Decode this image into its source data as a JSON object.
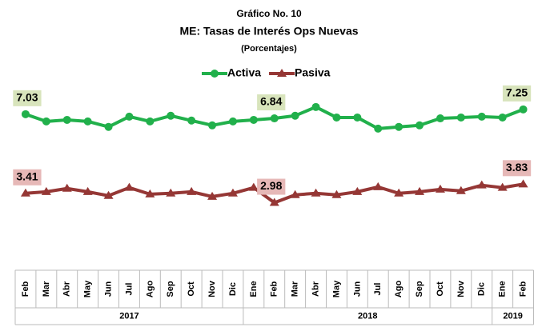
{
  "chart_data": {
    "type": "line",
    "title": "Gráfico No. 10",
    "subtitle": "ME: Tasas de Interés Ops Nuevas",
    "unit_label": "(Porcentajes)",
    "category_groups": [
      {
        "label": "2017",
        "categories": [
          "Feb",
          "Mar",
          "Abr",
          "May",
          "Jun",
          "Jul",
          "Ago",
          "Sep",
          "Oct",
          "Nov",
          "Dic"
        ]
      },
      {
        "label": "2018",
        "categories": [
          "Ene",
          "Feb",
          "Mar",
          "Abr",
          "May",
          "Jun",
          "Jul",
          "Ago",
          "Sep",
          "Oct",
          "Nov",
          "Dic"
        ]
      },
      {
        "label": "2019",
        "categories": [
          "Ene",
          "Feb"
        ]
      }
    ],
    "ylim": [
      0,
      9
    ],
    "series": [
      {
        "name": "Activa",
        "color": "#21b04b",
        "marker": "circle",
        "values": [
          7.03,
          6.7,
          6.77,
          6.7,
          6.45,
          6.92,
          6.7,
          6.96,
          6.74,
          6.52,
          6.7,
          6.77,
          6.84,
          6.96,
          7.36,
          6.88,
          6.88,
          6.37,
          6.45,
          6.52,
          6.84,
          6.88,
          6.92,
          6.88,
          7.25
        ],
        "value_labels": [
          "7.03",
          null,
          null,
          null,
          null,
          null,
          null,
          null,
          null,
          null,
          null,
          null,
          "6.84",
          null,
          null,
          null,
          null,
          null,
          null,
          null,
          null,
          null,
          null,
          null,
          "7.25"
        ]
      },
      {
        "name": "Pasiva",
        "color": "#953735",
        "marker": "triangle",
        "values": [
          3.41,
          3.48,
          3.63,
          3.48,
          3.3,
          3.67,
          3.37,
          3.41,
          3.48,
          3.26,
          3.41,
          3.67,
          2.98,
          3.34,
          3.41,
          3.34,
          3.48,
          3.7,
          3.41,
          3.48,
          3.59,
          3.52,
          3.78,
          3.67,
          3.83
        ],
        "value_labels": [
          "3.41",
          null,
          null,
          null,
          null,
          null,
          null,
          null,
          null,
          null,
          null,
          null,
          "2.98",
          null,
          null,
          null,
          null,
          null,
          null,
          null,
          null,
          null,
          null,
          null,
          "3.83"
        ]
      }
    ],
    "legend": "top"
  }
}
